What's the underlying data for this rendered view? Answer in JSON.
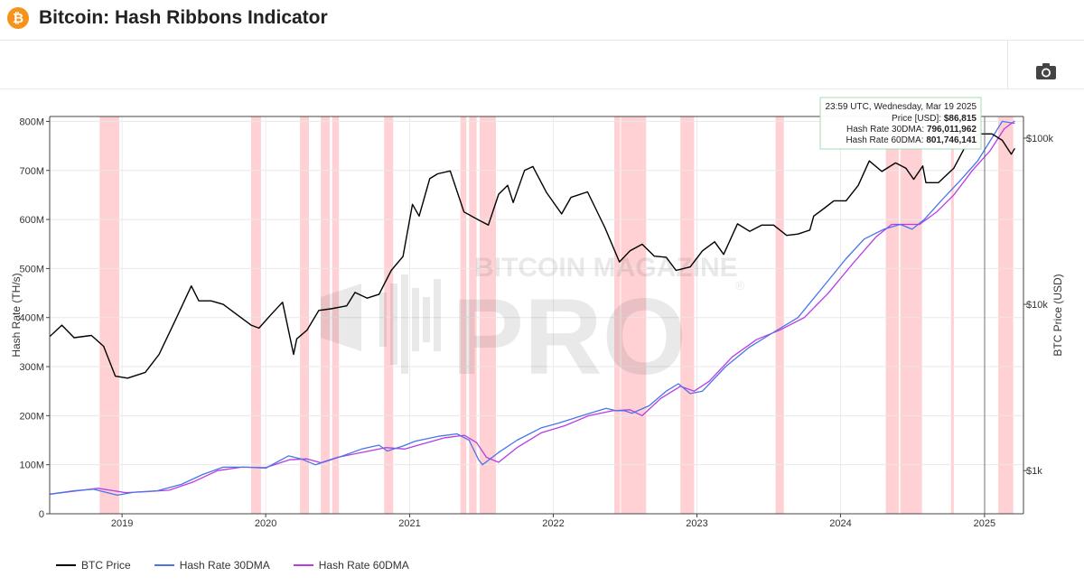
{
  "header": {
    "logo_glyph": "₿",
    "title": "Bitcoin: Hash Ribbons Indicator"
  },
  "toolbar": {
    "icon": "camera-icon"
  },
  "colors": {
    "btc_price": "#000000",
    "hash_rate_30dma": "#4a74e8",
    "hash_rate_60dma": "#b83ae8",
    "capitulation_band": "#ffb3b8",
    "tooltip_border": "#a6dcb4"
  },
  "watermark": {
    "line1": "BITCOIN MAGAZINE",
    "line2": "PRO",
    "mark": "®"
  },
  "tooltip": {
    "header": "23:59 UTC, Wednesday, Mar 19 2025",
    "rows": [
      {
        "label": "Price [USD]:",
        "value": "$86,815"
      },
      {
        "label": "Hash Rate 30DMA:",
        "value": "796,011,962"
      },
      {
        "label": "Hash Rate 60DMA:",
        "value": "801,746,141"
      }
    ]
  },
  "chart_data": {
    "type": "line",
    "title": "Bitcoin: Hash Ribbons Indicator",
    "xlabel": "",
    "ylabel_left": "Hash Rate (TH/s)",
    "ylabel_right": "BTC Price (USD)",
    "x_range": [
      "2018-07-01",
      "2025-04-10"
    ],
    "y_left_range": [
      0,
      810
    ],
    "y_left_unit": "M TH/s",
    "y_right_range_usd": [
      550,
      135000
    ],
    "y_right_scale": "log",
    "grid": true,
    "legend_position": "bottom-left",
    "x_ticks": [
      "2019",
      "2020",
      "2021",
      "2022",
      "2023",
      "2024",
      "2025"
    ],
    "x_tick_dates": [
      "2019-01-01",
      "2020-01-01",
      "2021-01-01",
      "2022-01-01",
      "2023-01-01",
      "2024-01-01",
      "2025-01-01"
    ],
    "y_left_ticks": [
      "0",
      "100M",
      "200M",
      "300M",
      "400M",
      "500M",
      "600M",
      "700M",
      "800M"
    ],
    "y_left_tick_values": [
      0,
      100,
      200,
      300,
      400,
      500,
      600,
      700,
      800
    ],
    "y_right_ticks": [
      "$1k",
      "$10k",
      "$100k"
    ],
    "y_right_tick_values": [
      1000,
      10000,
      100000
    ],
    "capitulation_periods": [
      [
        "2018-11-05",
        "2018-12-25"
      ],
      [
        "2019-11-25",
        "2019-12-20"
      ],
      [
        "2020-03-28",
        "2020-04-20"
      ],
      [
        "2020-05-20",
        "2020-06-12"
      ],
      [
        "2020-06-18",
        "2020-07-05"
      ],
      [
        "2020-10-28",
        "2020-11-20"
      ],
      [
        "2021-05-10",
        "2021-05-25"
      ],
      [
        "2021-06-01",
        "2021-06-20"
      ],
      [
        "2021-06-28",
        "2021-08-08"
      ],
      [
        "2022-06-05",
        "2022-06-20"
      ],
      [
        "2022-06-22",
        "2022-08-25"
      ],
      [
        "2022-11-20",
        "2022-12-25"
      ],
      [
        "2023-07-20",
        "2023-08-10"
      ],
      [
        "2024-04-25",
        "2024-05-28"
      ],
      [
        "2024-06-01",
        "2024-07-26"
      ],
      [
        "2024-10-08",
        "2024-10-15"
      ],
      [
        "2025-02-05",
        "2025-03-15"
      ]
    ],
    "series": [
      {
        "name": "BTC Price",
        "axis": "right",
        "x": [
          "2018-07-01",
          "2018-08-01",
          "2018-09-01",
          "2018-10-15",
          "2018-11-15",
          "2018-12-15",
          "2019-01-15",
          "2019-03-01",
          "2019-04-05",
          "2019-05-15",
          "2019-06-26",
          "2019-07-15",
          "2019-08-15",
          "2019-09-15",
          "2019-10-25",
          "2019-11-25",
          "2019-12-15",
          "2020-01-15",
          "2020-02-13",
          "2020-03-12",
          "2020-03-20",
          "2020-04-15",
          "2020-05-15",
          "2020-06-15",
          "2020-07-25",
          "2020-08-15",
          "2020-09-15",
          "2020-10-15",
          "2020-11-15",
          "2020-12-15",
          "2021-01-08",
          "2021-01-25",
          "2021-02-21",
          "2021-03-13",
          "2021-04-14",
          "2021-05-19",
          "2021-06-22",
          "2021-07-20",
          "2021-08-15",
          "2021-09-07",
          "2021-09-21",
          "2021-10-20",
          "2021-11-10",
          "2021-12-15",
          "2022-01-22",
          "2022-02-15",
          "2022-03-29",
          "2022-05-12",
          "2022-06-18",
          "2022-07-15",
          "2022-08-15",
          "2022-09-15",
          "2022-10-15",
          "2022-11-09",
          "2022-12-15",
          "2023-01-15",
          "2023-02-15",
          "2023-03-10",
          "2023-04-14",
          "2023-05-15",
          "2023-06-15",
          "2023-07-15",
          "2023-08-17",
          "2023-09-15",
          "2023-10-15",
          "2023-10-25",
          "2023-11-15",
          "2023-12-15",
          "2024-01-15",
          "2024-02-15",
          "2024-03-14",
          "2024-04-15",
          "2024-05-20",
          "2024-06-15",
          "2024-07-05",
          "2024-07-28",
          "2024-08-05",
          "2024-09-06",
          "2024-10-15",
          "2024-11-12",
          "2024-12-17",
          "2025-01-20",
          "2025-02-15",
          "2025-03-10",
          "2025-03-19"
        ],
        "y": [
          6400,
          7500,
          6300,
          6500,
          5600,
          3700,
          3600,
          3900,
          5000,
          7900,
          12900,
          10500,
          10500,
          10000,
          8500,
          7500,
          7200,
          8700,
          10300,
          5000,
          6200,
          7000,
          9200,
          9400,
          9800,
          11800,
          10900,
          11500,
          16000,
          19400,
          40000,
          34000,
          57000,
          61000,
          63500,
          36000,
          32500,
          30000,
          46000,
          52000,
          41000,
          64000,
          67500,
          47000,
          35000,
          44000,
          47500,
          29000,
          18000,
          21000,
          23000,
          19500,
          19200,
          16000,
          16800,
          21000,
          23800,
          20000,
          30500,
          27500,
          30000,
          30000,
          26000,
          26500,
          28000,
          34000,
          37000,
          42000,
          42000,
          52000,
          73000,
          63000,
          71000,
          66000,
          56500,
          68000,
          54000,
          54000,
          66000,
          88000,
          106000,
          106000,
          97000,
          80000,
          86815
        ]
      },
      {
        "name": "Hash Rate 30DMA",
        "axis": "left",
        "x": [
          "2018-07-01",
          "2018-09-01",
          "2018-10-20",
          "2018-12-20",
          "2019-02-01",
          "2019-04-01",
          "2019-06-01",
          "2019-07-25",
          "2019-09-15",
          "2019-11-15",
          "2020-01-01",
          "2020-02-28",
          "2020-03-31",
          "2020-05-06",
          "2020-06-15",
          "2020-07-15",
          "2020-09-01",
          "2020-10-15",
          "2020-11-05",
          "2020-12-15",
          "2021-01-15",
          "2021-03-15",
          "2021-05-01",
          "2021-06-01",
          "2021-06-25",
          "2021-07-05",
          "2021-08-15",
          "2021-10-01",
          "2021-12-01",
          "2022-01-15",
          "2022-03-15",
          "2022-05-15",
          "2022-06-10",
          "2022-07-01",
          "2022-07-20",
          "2022-09-01",
          "2022-10-15",
          "2022-11-15",
          "2022-12-15",
          "2023-01-15",
          "2023-03-15",
          "2023-05-15",
          "2023-07-15",
          "2023-09-15",
          "2023-11-15",
          "2024-01-15",
          "2024-03-01",
          "2024-04-20",
          "2024-06-01",
          "2024-07-01",
          "2024-08-01",
          "2024-09-15",
          "2024-11-01",
          "2024-12-15",
          "2025-01-15",
          "2025-02-15",
          "2025-03-19"
        ],
        "y": [
          40,
          47,
          50,
          38,
          44,
          47,
          60,
          80,
          95,
          95,
          93,
          118,
          112,
          100,
          110,
          118,
          132,
          140,
          128,
          138,
          148,
          158,
          163,
          150,
          110,
          100,
          125,
          150,
          175,
          185,
          200,
          215,
          210,
          210,
          205,
          220,
          250,
          265,
          245,
          250,
          300,
          340,
          370,
          400,
          460,
          520,
          560,
          580,
          590,
          580,
          600,
          640,
          680,
          720,
          760,
          800,
          796
        ]
      },
      {
        "name": "Hash Rate 60DMA",
        "axis": "left",
        "x": [
          "2018-07-01",
          "2018-09-01",
          "2018-11-01",
          "2019-01-10",
          "2019-03-01",
          "2019-05-01",
          "2019-07-01",
          "2019-09-01",
          "2019-11-01",
          "2020-01-01",
          "2020-03-01",
          "2020-04-15",
          "2020-05-20",
          "2020-07-01",
          "2020-09-01",
          "2020-11-01",
          "2020-12-20",
          "2021-02-01",
          "2021-04-01",
          "2021-05-20",
          "2021-06-20",
          "2021-07-15",
          "2021-08-15",
          "2021-10-01",
          "2021-12-01",
          "2022-02-01",
          "2022-04-01",
          "2022-06-01",
          "2022-07-15",
          "2022-08-15",
          "2022-10-01",
          "2022-11-20",
          "2022-12-25",
          "2023-02-01",
          "2023-04-01",
          "2023-06-01",
          "2023-08-01",
          "2023-10-01",
          "2023-12-01",
          "2024-02-01",
          "2024-04-01",
          "2024-05-10",
          "2024-06-15",
          "2024-07-20",
          "2024-09-01",
          "2024-10-15",
          "2024-12-01",
          "2025-01-15",
          "2025-02-20",
          "2025-03-19"
        ],
        "y": [
          40,
          46,
          52,
          43,
          45,
          48,
          65,
          88,
          95,
          94,
          110,
          112,
          104,
          115,
          125,
          135,
          132,
          142,
          155,
          160,
          145,
          115,
          105,
          135,
          165,
          180,
          200,
          210,
          212,
          200,
          235,
          260,
          250,
          270,
          320,
          355,
          375,
          400,
          450,
          510,
          565,
          590,
          590,
          590,
          615,
          650,
          700,
          740,
          785,
          801
        ]
      }
    ]
  },
  "legend": {
    "items": [
      {
        "label": "BTC Price"
      },
      {
        "label": "Hash Rate 30DMA"
      },
      {
        "label": "Hash Rate 60DMA"
      }
    ]
  }
}
